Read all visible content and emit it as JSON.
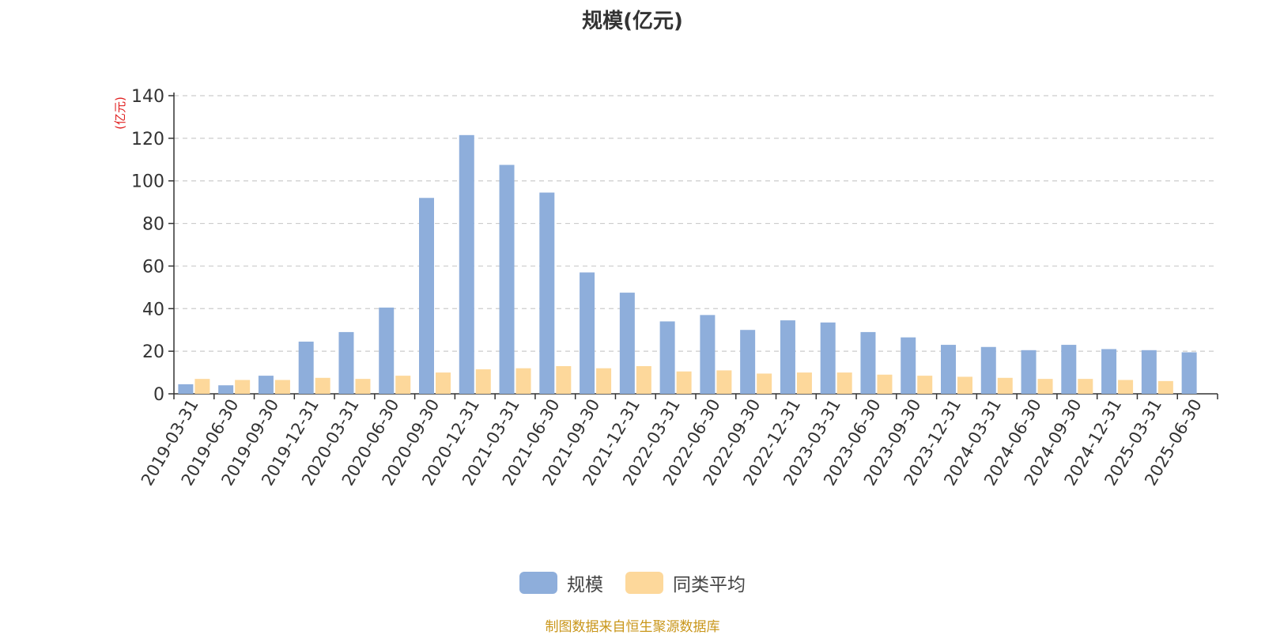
{
  "chart_data": {
    "type": "bar",
    "title": "规模(亿元)",
    "ylabel": "(亿元)",
    "xlabel": "",
    "ylim": [
      0,
      140
    ],
    "yticks": [
      0,
      20,
      40,
      60,
      80,
      100,
      120,
      140
    ],
    "grid": true,
    "legend_position": "bottom-center",
    "categories": [
      "2019-03-31",
      "2019-06-30",
      "2019-09-30",
      "2019-12-31",
      "2020-03-31",
      "2020-06-30",
      "2020-09-30",
      "2020-12-31",
      "2021-03-31",
      "2021-06-30",
      "2021-09-30",
      "2021-12-31",
      "2022-03-31",
      "2022-06-30",
      "2022-09-30",
      "2022-12-31",
      "2023-03-31",
      "2023-06-30",
      "2023-09-30",
      "2023-12-31",
      "2024-03-31",
      "2024-06-30",
      "2024-09-30",
      "2024-12-31",
      "2025-03-31",
      "2025-06-30"
    ],
    "series": [
      {
        "name": "规模",
        "color": "#8eaedb",
        "values": [
          4.5,
          4.0,
          8.5,
          24.5,
          29.0,
          40.5,
          92.0,
          121.5,
          107.5,
          94.5,
          57.0,
          47.5,
          34.0,
          37.0,
          30.0,
          34.5,
          33.5,
          29.0,
          26.5,
          23.0,
          22.0,
          20.5,
          23.0,
          21.0,
          20.5,
          19.5
        ]
      },
      {
        "name": "同类平均",
        "color": "#fdd89b",
        "values": [
          7.0,
          6.5,
          6.5,
          7.5,
          7.0,
          8.5,
          10.0,
          11.5,
          12.0,
          13.0,
          12.0,
          13.0,
          10.5,
          11.0,
          9.5,
          10.0,
          10.0,
          9.0,
          8.5,
          8.0,
          7.5,
          7.0,
          7.0,
          6.5,
          6.0,
          null
        ]
      }
    ]
  },
  "source_text": "制图数据来自恒生聚源数据库"
}
